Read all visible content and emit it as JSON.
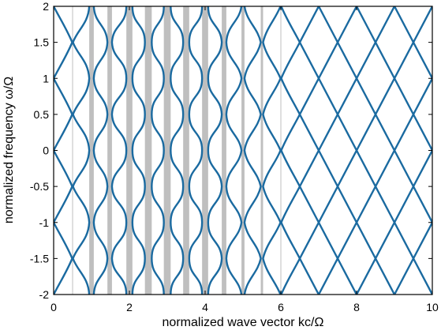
{
  "chart_data": {
    "type": "line",
    "xlabel": "normalized wave vector kc/Ω",
    "ylabel": "normalized frequency ω/Ω",
    "xlim": [
      0,
      10
    ],
    "ylim": [
      -2,
      2
    ],
    "xticks": [
      0,
      2,
      4,
      6,
      8,
      10
    ],
    "yticks": [
      -2,
      -1.5,
      -1,
      -0.5,
      0,
      0.5,
      1,
      1.5,
      2
    ],
    "grid": false,
    "color": "#1a6aa0",
    "gap_color": "#bfbfbf",
    "gaps": [
      [
        0.49,
        0.51
      ],
      [
        0.94,
        1.06
      ],
      [
        1.42,
        1.54
      ],
      [
        1.92,
        2.08
      ],
      [
        2.41,
        2.59
      ],
      [
        2.91,
        3.09
      ],
      [
        3.42,
        3.58
      ],
      [
        3.92,
        4.08
      ],
      [
        4.44,
        4.56
      ],
      [
        4.96,
        5.04
      ],
      [
        5.47,
        5.53
      ],
      [
        5.99,
        6.01
      ]
    ],
    "series": [
      {
        "x": [
          0,
          0.49,
          0,
          0.49,
          0,
          0.49,
          0,
          0.49,
          0
        ],
        "values": [
          -2,
          -1.5,
          -1,
          -0.5,
          0,
          0.5,
          1,
          1.5,
          2
        ]
      },
      {
        "x": [
          0.94,
          0.51,
          0.94,
          0.51,
          0.94,
          0.51,
          0.94,
          0.51,
          0.94
        ],
        "values": [
          -2,
          -1.5,
          -1,
          -0.5,
          0,
          0.5,
          1,
          1.5,
          2
        ]
      },
      {
        "x": [
          1.06,
          1.42,
          1.06,
          1.42,
          1.06,
          1.42,
          1.06,
          1.42,
          1.06
        ],
        "values": [
          -2,
          -1.5,
          -1,
          -0.5,
          0,
          0.5,
          1,
          1.5,
          2
        ]
      },
      {
        "x": [
          1.92,
          1.54,
          1.92,
          1.54,
          1.92,
          1.54,
          1.92,
          1.54,
          1.92
        ],
        "values": [
          -2,
          -1.5,
          -1,
          -0.5,
          0,
          0.5,
          1,
          1.5,
          2
        ]
      },
      {
        "x": [
          2.08,
          2.41,
          2.08,
          2.41,
          2.08,
          2.41,
          2.08,
          2.41,
          2.08
        ],
        "values": [
          -2,
          -1.5,
          -1,
          -0.5,
          0,
          0.5,
          1,
          1.5,
          2
        ]
      },
      {
        "x": [
          2.91,
          2.59,
          2.91,
          2.59,
          2.91,
          2.59,
          2.91,
          2.59,
          2.91
        ],
        "values": [
          -2,
          -1.5,
          -1,
          -0.5,
          0,
          0.5,
          1,
          1.5,
          2
        ]
      },
      {
        "x": [
          3.09,
          3.42,
          3.09,
          3.42,
          3.09,
          3.42,
          3.09,
          3.42,
          3.09
        ],
        "values": [
          -2,
          -1.5,
          -1,
          -0.5,
          0,
          0.5,
          1,
          1.5,
          2
        ]
      },
      {
        "x": [
          3.92,
          3.58,
          3.92,
          3.58,
          3.92,
          3.58,
          3.92,
          3.58,
          3.92
        ],
        "values": [
          -2,
          -1.5,
          -1,
          -0.5,
          0,
          0.5,
          1,
          1.5,
          2
        ]
      },
      {
        "x": [
          4.08,
          4.44,
          4.08,
          4.44,
          4.08,
          4.44,
          4.08,
          4.44,
          4.08
        ],
        "values": [
          -2,
          -1.5,
          -1,
          -0.5,
          0,
          0.5,
          1,
          1.5,
          2
        ]
      },
      {
        "x": [
          4.96,
          4.56,
          4.96,
          4.56,
          4.96,
          4.56,
          4.96,
          4.56,
          4.96
        ],
        "values": [
          -2,
          -1.5,
          -1,
          -0.5,
          0,
          0.5,
          1,
          1.5,
          2
        ]
      },
      {
        "x": [
          5.04,
          5.47,
          5.04,
          5.47,
          5.04,
          5.47,
          5.04,
          5.47,
          5.04
        ],
        "values": [
          -2,
          -1.5,
          -1,
          -0.5,
          0,
          0.5,
          1,
          1.5,
          2
        ]
      },
      {
        "x": [
          5.99,
          5.53,
          5.99,
          5.53,
          5.99,
          5.53,
          5.99,
          5.53,
          5.99
        ],
        "values": [
          -2,
          -1.5,
          -1,
          -0.5,
          0,
          0.5,
          1,
          1.5,
          2
        ]
      },
      {
        "x": [
          6.01,
          6.5,
          6.01,
          6.5,
          6.01,
          6.5,
          6.01,
          6.5,
          6.01
        ],
        "values": [
          -2,
          -1.5,
          -1,
          -0.5,
          0,
          0.5,
          1,
          1.5,
          2
        ]
      },
      {
        "x": [
          7,
          6.5,
          7,
          6.5,
          7,
          6.5,
          7,
          6.5,
          7
        ],
        "values": [
          -2,
          -1.5,
          -1,
          -0.5,
          0,
          0.5,
          1,
          1.5,
          2
        ]
      },
      {
        "x": [
          7,
          7.5,
          7,
          7.5,
          7,
          7.5,
          7,
          7.5,
          7
        ],
        "values": [
          -2,
          -1.5,
          -1,
          -0.5,
          0,
          0.5,
          1,
          1.5,
          2
        ]
      },
      {
        "x": [
          8,
          7.5,
          8,
          7.5,
          8,
          7.5,
          8,
          7.5,
          8
        ],
        "values": [
          -2,
          -1.5,
          -1,
          -0.5,
          0,
          0.5,
          1,
          1.5,
          2
        ]
      },
      {
        "x": [
          8,
          8.5,
          8,
          8.5,
          8,
          8.5,
          8,
          8.5,
          8
        ],
        "values": [
          -2,
          -1.5,
          -1,
          -0.5,
          0,
          0.5,
          1,
          1.5,
          2
        ]
      },
      {
        "x": [
          9,
          8.5,
          9,
          8.5,
          9,
          8.5,
          9,
          8.5,
          9
        ],
        "values": [
          -2,
          -1.5,
          -1,
          -0.5,
          0,
          0.5,
          1,
          1.5,
          2
        ]
      },
      {
        "x": [
          9,
          9.5,
          9,
          9.5,
          9,
          9.5,
          9,
          9.5,
          9
        ],
        "values": [
          -2,
          -1.5,
          -1,
          -0.5,
          0,
          0.5,
          1,
          1.5,
          2
        ]
      },
      {
        "x": [
          10,
          9.5,
          10,
          9.5,
          10,
          9.5,
          10,
          9.5,
          10
        ],
        "values": [
          -2,
          -1.5,
          -1,
          -0.5,
          0,
          0.5,
          1,
          1.5,
          2
        ]
      }
    ]
  }
}
